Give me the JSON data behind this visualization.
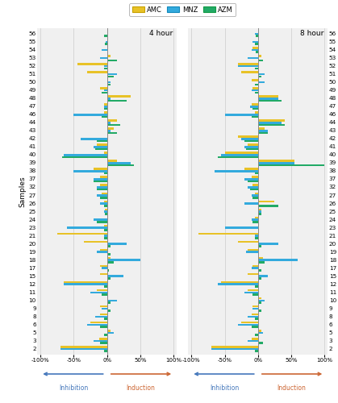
{
  "samples": [
    56,
    55,
    54,
    53,
    52,
    51,
    50,
    49,
    48,
    47,
    46,
    44,
    43,
    42,
    41,
    40,
    39,
    38,
    37,
    32,
    27,
    26,
    25,
    24,
    23,
    21,
    20,
    19,
    18,
    17,
    15,
    12,
    11,
    10,
    9,
    8,
    6,
    5,
    3,
    2
  ],
  "hour4": {
    "AMC": [
      0,
      0,
      0,
      5,
      -45,
      -30,
      0,
      -10,
      35,
      -5,
      -5,
      15,
      10,
      0,
      -15,
      -5,
      15,
      -20,
      -10,
      -10,
      -8,
      -5,
      -3,
      0,
      -5,
      -75,
      -35,
      -10,
      5,
      -10,
      -10,
      -65,
      -15,
      0,
      -10,
      -10,
      -25,
      5,
      -12,
      -70
    ],
    "MNZ": [
      0,
      -2,
      -8,
      -10,
      -5,
      15,
      5,
      -5,
      5,
      -5,
      -50,
      5,
      5,
      -40,
      -20,
      -65,
      35,
      -50,
      -20,
      -15,
      -15,
      -10,
      -5,
      -20,
      -60,
      -5,
      30,
      -15,
      50,
      -8,
      25,
      -65,
      -25,
      15,
      -8,
      -18,
      -30,
      10,
      -20,
      -70
    ],
    "AZM": [
      -5,
      -3,
      0,
      15,
      -5,
      10,
      5,
      -8,
      30,
      -5,
      -8,
      20,
      15,
      -15,
      -18,
      -68,
      40,
      -5,
      -20,
      -15,
      -10,
      -5,
      -3,
      -15,
      -5,
      -5,
      5,
      5,
      10,
      3,
      5,
      -5,
      -8,
      5,
      5,
      -5,
      -10,
      -5,
      -10,
      -5
    ]
  },
  "hour8": {
    "AMC": [
      0,
      0,
      -8,
      5,
      -30,
      -25,
      -10,
      -8,
      30,
      -10,
      -5,
      40,
      10,
      -30,
      -15,
      -50,
      55,
      -20,
      -10,
      -8,
      -5,
      25,
      5,
      -5,
      2,
      -90,
      -30,
      -15,
      8,
      -8,
      -15,
      -55,
      -15,
      5,
      -8,
      -10,
      -25,
      5,
      -10,
      -70
    ],
    "MNZ": [
      -5,
      -8,
      -10,
      -15,
      -30,
      10,
      10,
      -10,
      30,
      -12,
      -50,
      35,
      15,
      -25,
      -20,
      -55,
      55,
      -65,
      -20,
      -15,
      -10,
      -20,
      5,
      -10,
      -50,
      -5,
      30,
      -18,
      60,
      -10,
      15,
      -60,
      -20,
      10,
      -8,
      -15,
      -30,
      8,
      -15,
      -70
    ],
    "AZM": [
      -3,
      -5,
      -3,
      8,
      -5,
      5,
      -5,
      -5,
      35,
      -8,
      -10,
      40,
      15,
      -20,
      -18,
      -60,
      100,
      -5,
      -15,
      -12,
      -8,
      30,
      5,
      -8,
      2,
      -5,
      5,
      2,
      10,
      5,
      5,
      -5,
      -8,
      5,
      5,
      -5,
      -10,
      -5,
      8,
      -5
    ]
  },
  "colors": {
    "AMC": "#E8C227",
    "MNZ": "#33AADD",
    "AZM": "#22AA66"
  },
  "bar_height": 0.27,
  "xlim": [
    -105,
    105
  ],
  "xticks": [
    -100,
    -50,
    0,
    50,
    100
  ],
  "xticklabels": [
    "-100%",
    "-50%",
    "0%",
    "50%",
    "100%"
  ],
  "title4": "4 hour",
  "title8": "8 hour",
  "ylabel": "Samples",
  "inhibition_label": "Inhibition",
  "induction_label": "Induction",
  "inhibition_color": "#4477BB",
  "induction_color": "#CC6633",
  "bg_color": "#F0F0F0",
  "legend_edge_colors": {
    "AMC": "#C8A000",
    "MNZ": "#1188BB",
    "AZM": "#119944"
  }
}
